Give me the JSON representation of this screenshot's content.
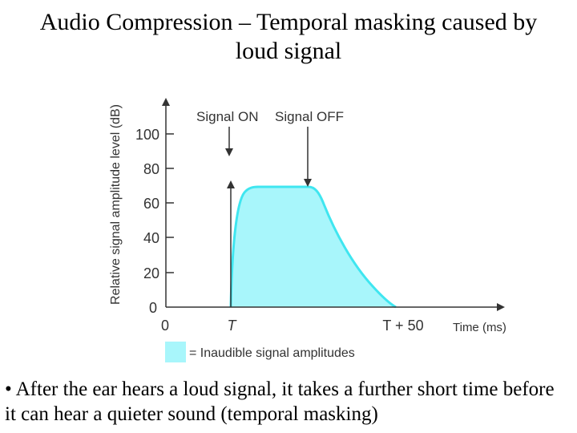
{
  "slide": {
    "title_line1": "Audio Compression – Temporal masking caused by",
    "title_line2": "loud signal",
    "bullet": "• After the ear hears a loud signal, it takes a further short time before it can hear a quieter sound (temporal masking)"
  },
  "figure": {
    "ylabel": "Relative signal amplitude level (dB)",
    "xlabel": "Time (ms)",
    "y_ticks": [
      "100",
      "80",
      "60",
      "40",
      "20",
      "0"
    ],
    "x_ticks": [
      "0",
      "T",
      "T + 50"
    ],
    "signal_on_label": "Signal ON",
    "signal_off_label": "Signal OFF",
    "legend_label": "= Inaudible signal amplitudes",
    "fill_color": "#a8f6fb",
    "curve_color": "#3fe6f0"
  }
}
